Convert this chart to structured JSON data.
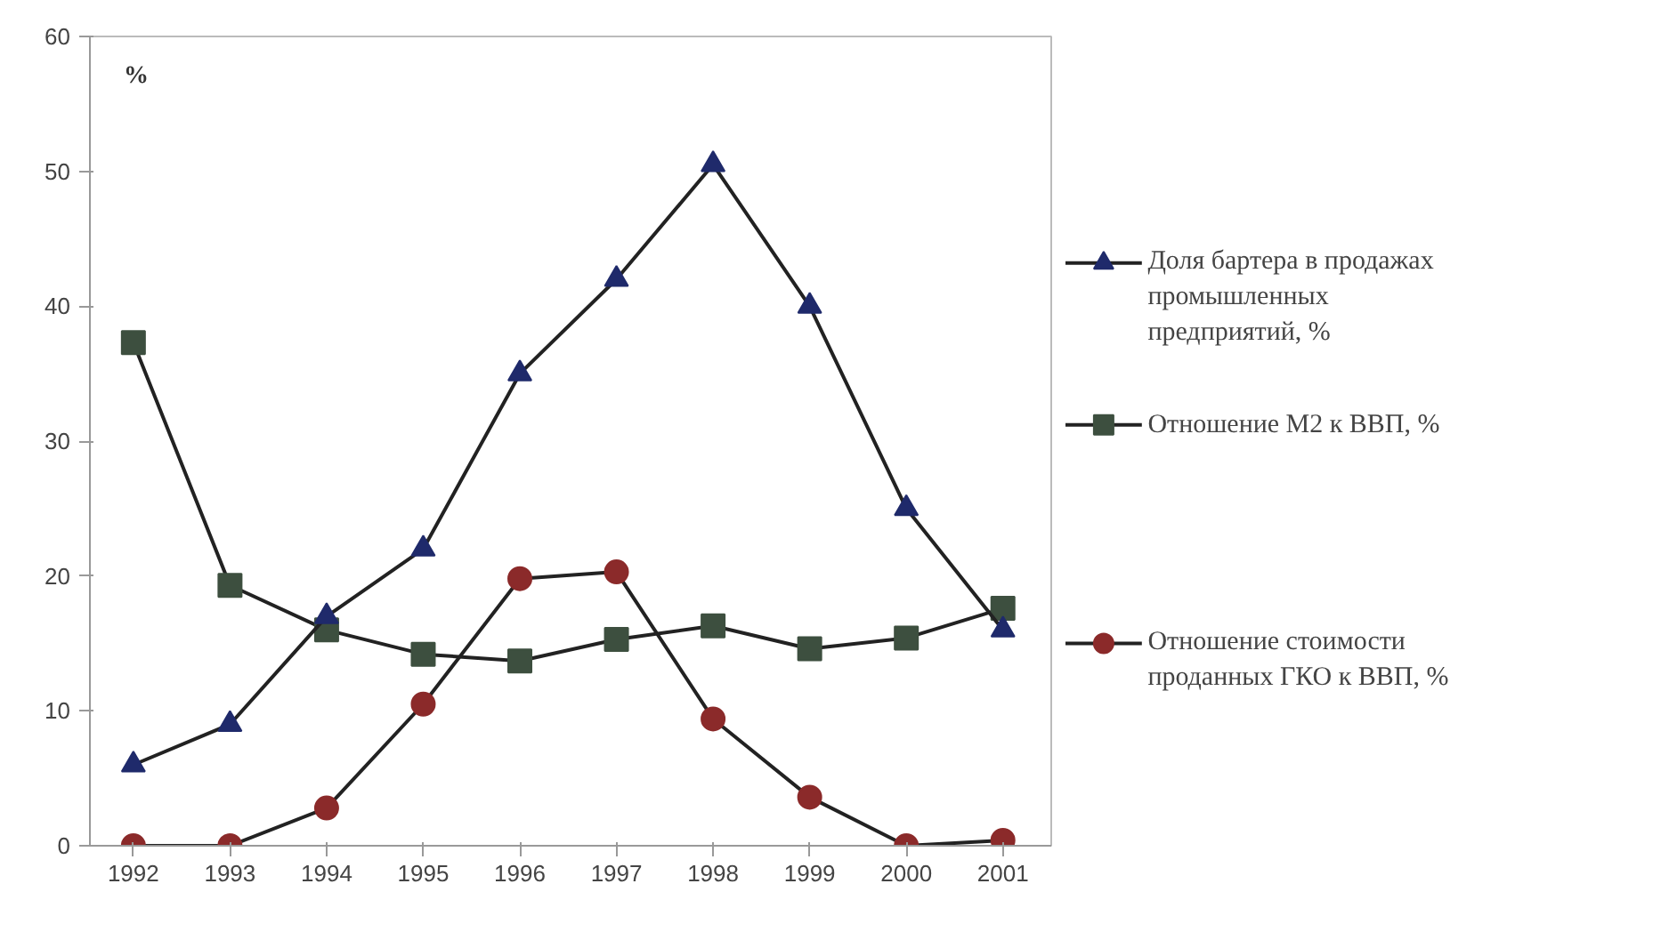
{
  "chart_data": {
    "type": "line",
    "ylabel": "%",
    "categories": [
      "1992",
      "1993",
      "1994",
      "1995",
      "1996",
      "1997",
      "1998",
      "1999",
      "2000",
      "2001"
    ],
    "series": [
      {
        "name": "Доля бартера в продажах промышленных предприятий, %",
        "color": "#1f2a6b",
        "marker": "triangle",
        "values": [
          6,
          9,
          17,
          22,
          35,
          42,
          50.5,
          40,
          25,
          16
        ]
      },
      {
        "name": "Отношение М2 к ВВП, %",
        "color": "#3d4f3f",
        "marker": "square",
        "values": [
          37.3,
          19.3,
          16,
          14.2,
          13.7,
          15.3,
          16.3,
          14.6,
          15.4,
          17.6
        ]
      },
      {
        "name": "Отношение стоимости проданных ГКО к ВВП, %",
        "color": "#8b2a2a",
        "marker": "circle",
        "values": [
          0,
          0,
          2.8,
          10.5,
          19.8,
          20.3,
          9.4,
          3.6,
          0,
          0.4
        ]
      }
    ],
    "ylim": [
      0,
      60
    ],
    "yticks": [
      0,
      10,
      20,
      30,
      40,
      50,
      60
    ],
    "grid": false,
    "legend": "right",
    "line_style": "solid"
  }
}
